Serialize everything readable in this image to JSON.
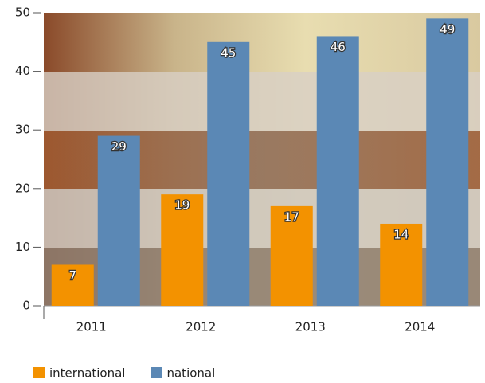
{
  "chart_data": {
    "type": "bar",
    "categories": [
      "2011",
      "2012",
      "2013",
      "2014"
    ],
    "series": [
      {
        "name": "international",
        "color": "#f39200",
        "values": [
          7,
          19,
          17,
          14
        ]
      },
      {
        "name": "national",
        "color": "#5b88b5",
        "values": [
          29,
          45,
          46,
          49
        ]
      }
    ],
    "ylim": [
      0,
      50
    ],
    "yticks": [
      0,
      10,
      20,
      30,
      40,
      50
    ],
    "legend": "bottom-left"
  }
}
